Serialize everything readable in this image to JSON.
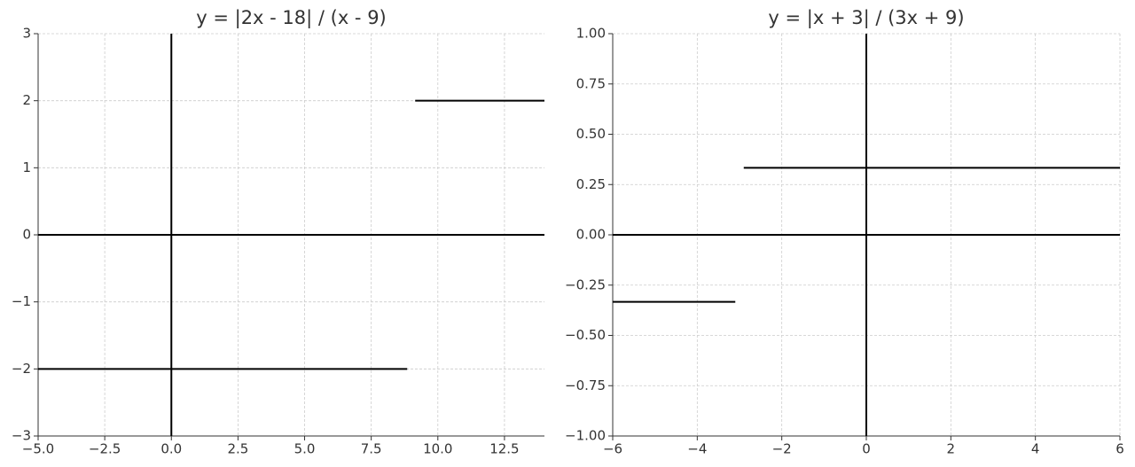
{
  "chart_data": [
    {
      "type": "line",
      "title": "y = |2x - 18| / (x - 9)",
      "x": [
        -5,
        8.85,
        9,
        9.15,
        14
      ],
      "series": [
        {
          "color": "#000000",
          "values": [
            -2,
            -2,
            null,
            2,
            2
          ]
        }
      ],
      "xlim": [
        -5,
        14
      ],
      "xticks": [
        {
          "value": -5,
          "label": "−5.0"
        },
        {
          "value": -2.5,
          "label": "−2.5"
        },
        {
          "value": 0,
          "label": "0.0"
        },
        2.5,
        {
          "value": 5,
          "label": "5.0"
        },
        7.5,
        {
          "value": 10,
          "label": "10.0"
        },
        12.5
      ],
      "ylim": [
        -3,
        3
      ],
      "yticks": [
        {
          "value": -3,
          "label": "−3"
        },
        {
          "value": -2,
          "label": "−2"
        },
        {
          "value": -1,
          "label": "−1"
        },
        0,
        1,
        2,
        3
      ],
      "grid": true,
      "axhline": 0,
      "axvline": 0
    },
    {
      "type": "line",
      "title": "y = |x + 3| / (3x + 9)",
      "x": [
        -6,
        -3.1,
        -3,
        -2.9,
        6
      ],
      "series": [
        {
          "color": "#000000",
          "values": [
            -0.333,
            -0.333,
            null,
            0.333,
            0.333
          ]
        }
      ],
      "xlim": [
        -6,
        6
      ],
      "xticks": [
        {
          "value": -6,
          "label": "−6"
        },
        {
          "value": -4,
          "label": "−4"
        },
        {
          "value": -2,
          "label": "−2"
        },
        0,
        2,
        4,
        6
      ],
      "ylim": [
        -1,
        1
      ],
      "yticks": [
        {
          "value": -1,
          "label": "−1.00"
        },
        {
          "value": -0.75,
          "label": "−0.75"
        },
        {
          "value": -0.5,
          "label": "−0.50"
        },
        {
          "value": -0.25,
          "label": "−0.25"
        },
        {
          "value": 0,
          "label": "0.00"
        },
        {
          "value": 0.25,
          "label": "0.25"
        },
        {
          "value": 0.5,
          "label": "0.50"
        },
        {
          "value": 0.75,
          "label": "0.75"
        },
        {
          "value": 1,
          "label": "1.00"
        }
      ],
      "grid": true,
      "axhline": 0,
      "axvline": 0
    }
  ]
}
